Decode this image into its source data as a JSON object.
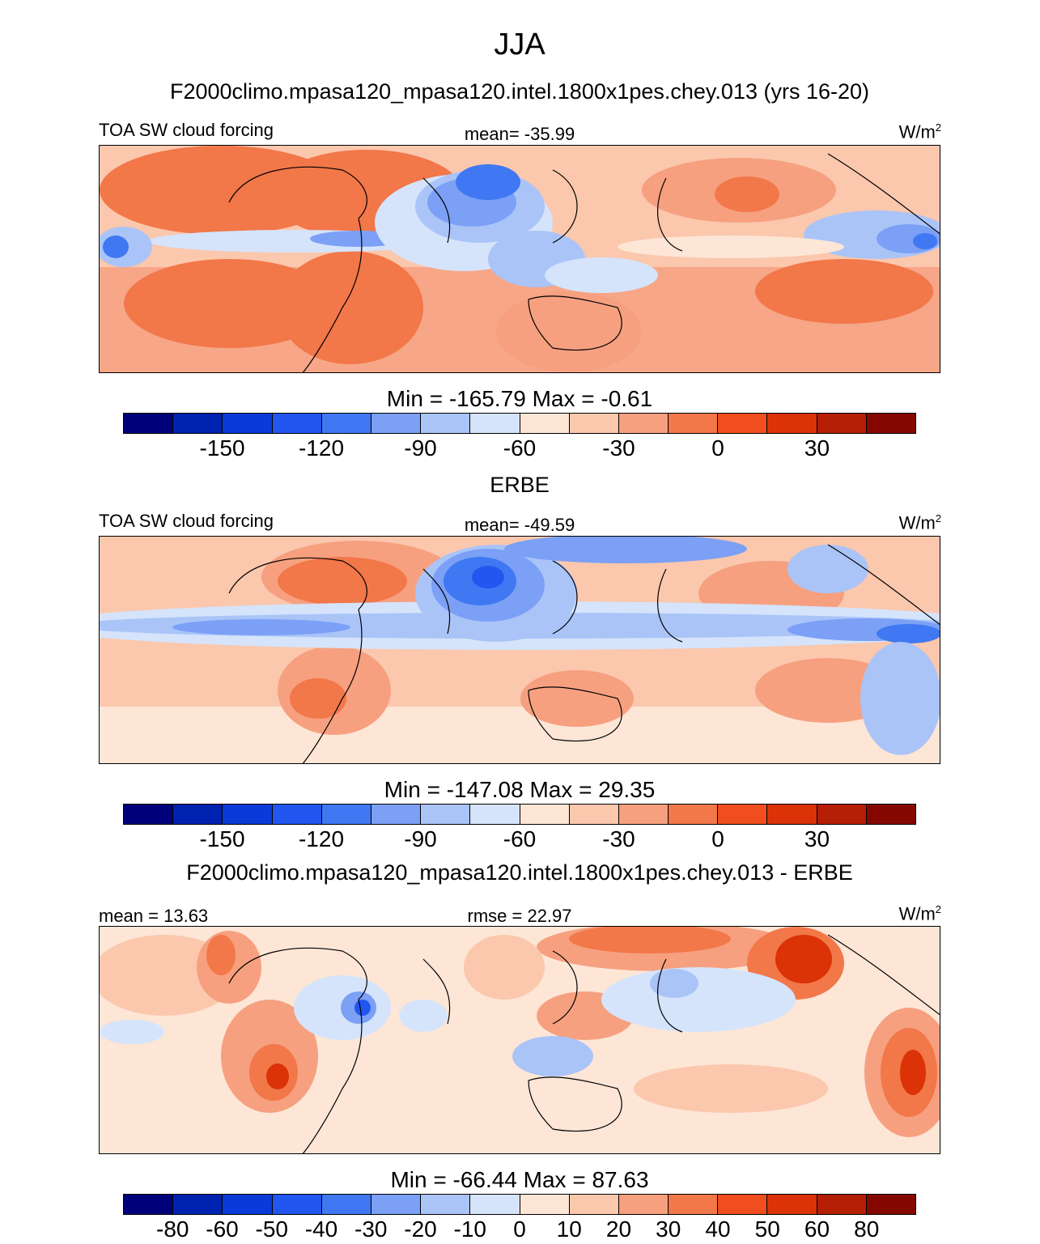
{
  "title": "JJA",
  "panels": [
    {
      "id": "model",
      "title": "F2000climo.mpasa120_mpasa120.intel.1800x1pes.chey.013 (yrs 16-20)",
      "left_label": "TOA SW cloud forcing",
      "center_label": "mean= -35.99",
      "units_base": "W/m",
      "units_exp": "2",
      "minmax": "Min = -165.79 Max =  -0.61",
      "tick_labels": [
        "-150",
        "-120",
        "-90",
        "-60",
        "-30",
        "0",
        "30"
      ],
      "tick_boundaries": [
        2,
        4,
        6,
        8,
        10,
        12,
        14
      ]
    },
    {
      "id": "obs",
      "title": "ERBE",
      "left_label": "TOA SW cloud forcing",
      "center_label": "mean= -49.59",
      "units_base": "W/m",
      "units_exp": "2",
      "minmax": "Min = -147.08 Max =  29.35",
      "tick_labels": [
        "-150",
        "-120",
        "-90",
        "-60",
        "-30",
        "0",
        "30"
      ],
      "tick_boundaries": [
        2,
        4,
        6,
        8,
        10,
        12,
        14
      ]
    },
    {
      "id": "diff",
      "title": "F2000climo.mpasa120_mpasa120.intel.1800x1pes.chey.013 - ERBE",
      "left_label": "mean =  13.63",
      "center_label": "rmse =  22.97",
      "units_base": "W/m",
      "units_exp": "2",
      "minmax": "Min = -66.44 Max =  87.63",
      "tick_labels": [
        "-80",
        "-60",
        "-50",
        "-40",
        "-30",
        "-20",
        "-10",
        "0",
        "10",
        "20",
        "30",
        "40",
        "50",
        "60",
        "80"
      ],
      "tick_boundaries": [
        1,
        2,
        3,
        4,
        5,
        6,
        7,
        8,
        9,
        10,
        11,
        12,
        13,
        14,
        15
      ]
    }
  ],
  "colormap": [
    "#00007a",
    "#0022b0",
    "#0a3ad8",
    "#2156f0",
    "#3f78f2",
    "#7ba0f5",
    "#aac4f8",
    "#d5e4fb",
    "#fde6d6",
    "#fbc7ad",
    "#f6a080",
    "#f27749",
    "#f04e1e",
    "#db3208",
    "#b41e04",
    "#840800"
  ]
}
